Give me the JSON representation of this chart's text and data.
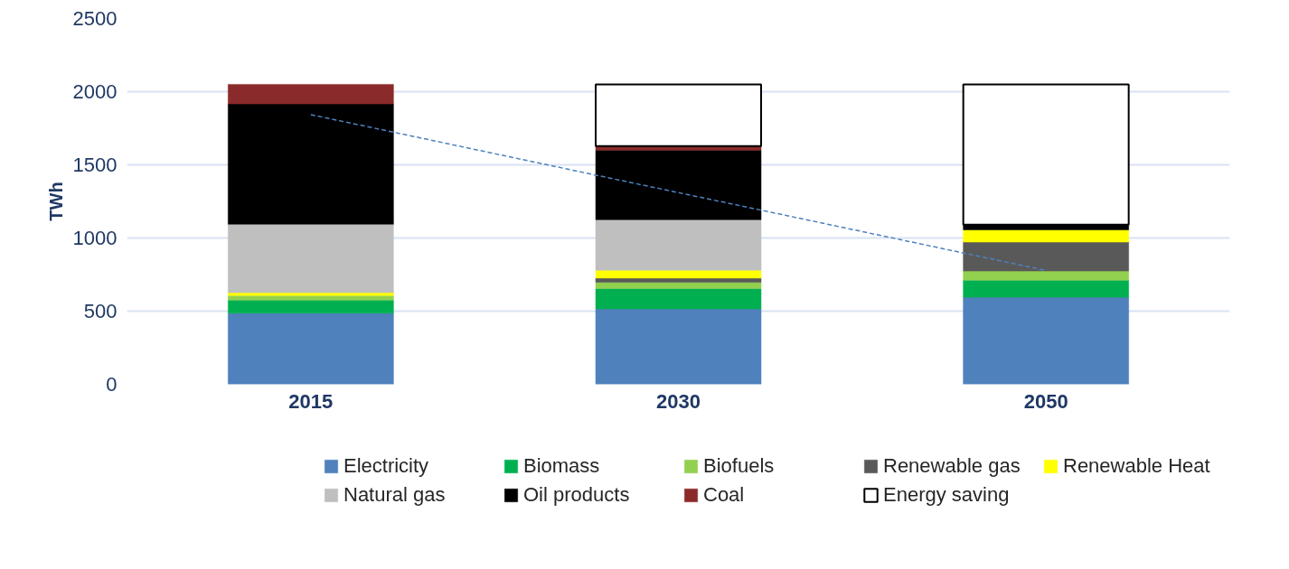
{
  "chart_data": {
    "type": "bar",
    "stacked": true,
    "ylabel": "TWh",
    "categories": [
      "2015",
      "2030",
      "2050"
    ],
    "ylim": [
      0,
      2500
    ],
    "yticks": [
      0,
      500,
      1000,
      1500,
      2000,
      2500
    ],
    "grid": "y",
    "legend": "bottom",
    "series": [
      {
        "name": "Electricity",
        "color": "#4f81bd",
        "values": [
          486,
          515,
          595
        ]
      },
      {
        "name": "Biomass",
        "color": "#00b050",
        "values": [
          90,
          140,
          117
        ]
      },
      {
        "name": "Biofuels",
        "color": "#92d050",
        "values": [
          31,
          42,
          62
        ]
      },
      {
        "name": "Renewable gas",
        "color": "#595959",
        "values": [
          0,
          29,
          198
        ]
      },
      {
        "name": "Renewable Heat",
        "color": "#ffff00",
        "values": [
          19,
          54,
          84
        ]
      },
      {
        "name": "Natural gas",
        "color": "#bfbfbf",
        "values": [
          468,
          345,
          0
        ]
      },
      {
        "name": "Oil products",
        "color": "#000000",
        "values": [
          822,
          475,
          35
        ]
      },
      {
        "name": "Coal",
        "color": "#8b2a2a",
        "values": [
          134,
          28,
          0
        ]
      },
      {
        "name": "Energy saving",
        "color": "#ffffff",
        "values": [
          0,
          422,
          959
        ]
      },
      {
        "type": "line",
        "line_style": "dashed",
        "color": "#4f81bd",
        "values": [
          1843,
          1310,
          778
        ]
      }
    ]
  }
}
